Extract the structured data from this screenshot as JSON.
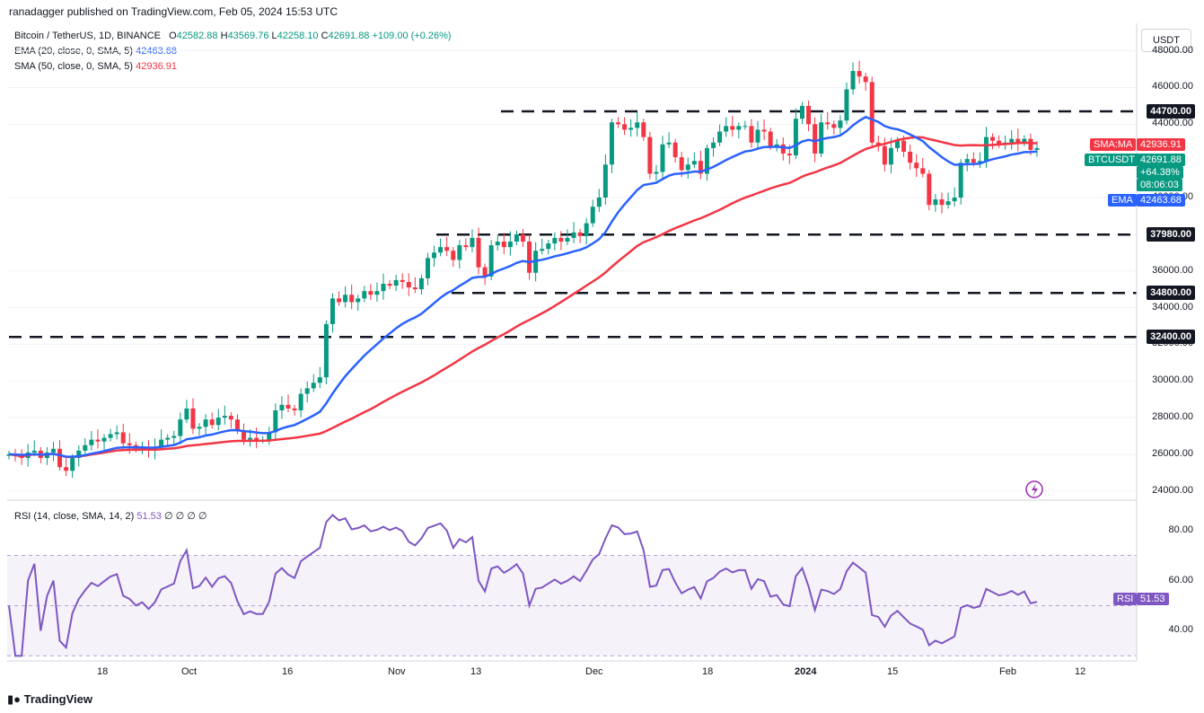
{
  "header": {
    "published": "ranadagger published on TradingView.com, Feb 05, 2024 15:53 UTC"
  },
  "legend": {
    "symbol": "Bitcoin / TetherUS, 1D, BINANCE",
    "o_label": "O",
    "o_val": "42582.88",
    "h_label": "H",
    "h_val": "43569.76",
    "l_label": "L",
    "l_val": "42258.10",
    "c_label": "C",
    "c_val": "42691.88",
    "change": "+109.00 (+0.26%)",
    "ema_label": "EMA (20, close, 0, SMA, 5)",
    "ema_val": "42463.68",
    "sma_label": "SMA (50, close, 0, SMA, 5)",
    "sma_val": "42936.91",
    "rsi_label": "RSI (14, close, SMA, 14, 2)",
    "rsi_val": "51.53",
    "rsi_nulls": "∅ ∅ ∅ ∅"
  },
  "currency_button": "USDT",
  "badges": {
    "sma_ma": "SMA:MA",
    "sma_ma_val": "42936.91",
    "btcusdt": "BTCUSDT",
    "btcusdt_val": "42691.88",
    "change_pct": "+64.38%",
    "countdown": "08:06:03",
    "ema": "EMA",
    "ema_val": "42463.68",
    "rsi": "RSI",
    "rsi_val": "51.53"
  },
  "colors": {
    "up": "#089981",
    "down": "#f23645",
    "ema": "#2962ff",
    "sma": "#f23645",
    "rsi": "#7e57c2",
    "level": "#131722"
  },
  "footer": {
    "brand": "TradingView"
  },
  "chart_data": [
    {
      "type": "candlestick",
      "title": "Bitcoin / TetherUS, 1D, BINANCE",
      "ylim": [
        23500,
        49500
      ],
      "y_ticks": [
        "48000.00",
        "46000.00",
        "44000.00",
        "40000.00",
        "36000.00",
        "34000.00",
        "32000.00",
        "30000.00",
        "28000.00",
        "26000.00",
        "24000.00"
      ],
      "x_ticks": [
        "18",
        "Oct",
        "16",
        "Nov",
        "13",
        "Dec",
        "18",
        "2024",
        "15",
        "Feb",
        "12"
      ],
      "levels": [
        {
          "label": "44700.00",
          "value": 44700
        },
        {
          "label": "37980.00",
          "value": 37980
        },
        {
          "label": "34800.00",
          "value": 34800
        },
        {
          "label": "32400.00",
          "value": 32400
        }
      ],
      "ohlc_note": "Approximate daily candles, Sep 2023 – Feb 05 2024",
      "closes": [
        26000,
        25900,
        25800,
        26100,
        26200,
        25800,
        26100,
        26300,
        25300,
        25100,
        25800,
        26200,
        26500,
        26800,
        26700,
        26900,
        27100,
        27200,
        26600,
        26500,
        26300,
        26400,
        26200,
        26400,
        26800,
        26900,
        27000,
        27900,
        28500,
        27400,
        27500,
        27900,
        27600,
        28000,
        28100,
        27900,
        27300,
        26800,
        26900,
        26800,
        26800,
        27200,
        28400,
        28700,
        28500,
        28400,
        29300,
        29600,
        29900,
        30200,
        33100,
        34500,
        34300,
        34700,
        34300,
        34500,
        34900,
        34700,
        34900,
        35300,
        35200,
        35500,
        35400,
        35100,
        35000,
        35600,
        36700,
        37000,
        37300,
        37100,
        36600,
        37400,
        37300,
        37800,
        36200,
        35700,
        37400,
        37600,
        37300,
        37600,
        38000,
        37600,
        35900,
        37100,
        37200,
        37500,
        37800,
        37600,
        37800,
        38100,
        37900,
        38600,
        39500,
        40000,
        41800,
        44100,
        44000,
        43700,
        43800,
        44100,
        43300,
        41300,
        41400,
        42900,
        43000,
        42200,
        41500,
        41800,
        42000,
        41300,
        42700,
        43000,
        43600,
        43900,
        43700,
        43900,
        43900,
        43000,
        43700,
        43600,
        42800,
        42900,
        42400,
        42300,
        44300,
        45000,
        44000,
        42400,
        44100,
        44000,
        43800,
        44200,
        45900,
        46900,
        46600,
        46300,
        43000,
        42800,
        41800,
        42700,
        43100,
        42500,
        41900,
        41600,
        41300,
        39600,
        39900,
        39600,
        39800,
        40000,
        41900,
        42100,
        41900,
        42000,
        43300,
        43100,
        42900,
        43000,
        43200,
        43000,
        43200,
        42600,
        42700
      ],
      "ema20_last": 42463.68,
      "sma50_last": 42936.91
    },
    {
      "type": "line",
      "title": "RSI (14, close, SMA, 14, 2)",
      "ylim": [
        28,
        92
      ],
      "y_ticks": [
        "80.00",
        "60.00",
        "40.00"
      ],
      "bands": [
        30,
        50,
        70
      ],
      "last_value": 51.53
    }
  ]
}
